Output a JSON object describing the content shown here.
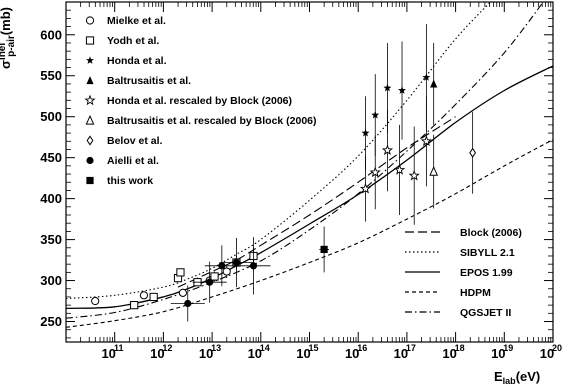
{
  "chart_data": {
    "type": "scatter",
    "x_scale": "log",
    "xlim_exponent": [
      10,
      20
    ],
    "ylim": [
      225,
      640
    ],
    "x_ticks": [
      {
        "base": "10",
        "exp": "11",
        "value": 11
      },
      {
        "base": "10",
        "exp": "12",
        "value": 12
      },
      {
        "base": "10",
        "exp": "13",
        "value": 13
      },
      {
        "base": "10",
        "exp": "14",
        "value": 14
      },
      {
        "base": "10",
        "exp": "15",
        "value": 15
      },
      {
        "base": "10",
        "exp": "16",
        "value": 16
      },
      {
        "base": "10",
        "exp": "17",
        "value": 17
      },
      {
        "base": "10",
        "exp": "18",
        "value": 18
      },
      {
        "base": "10",
        "exp": "19",
        "value": 19
      },
      {
        "base": "10",
        "exp": "20",
        "value": 20
      }
    ],
    "y_ticks": [
      "250",
      "300",
      "350",
      "400",
      "450",
      "500",
      "550",
      "600"
    ],
    "xlabel": {
      "main": "E",
      "sub": "lab",
      "unit": "(eV)"
    },
    "ylabel": {
      "main": "σ",
      "sup": "inel",
      "sub": "p-air",
      "unit": "(mb)"
    },
    "grid": false,
    "legend_points": [
      {
        "label": "Mielke et al.",
        "marker": "circle-open"
      },
      {
        "label": "Yodh et al.",
        "marker": "square-open"
      },
      {
        "label": "Honda et al.",
        "marker": "star-filled"
      },
      {
        "label": "Baltrusaitis et al.",
        "marker": "triangle-filled"
      },
      {
        "label": "Honda et al. rescaled by Block (2006)",
        "marker": "star-open"
      },
      {
        "label": "Baltrusaitis et al. rescaled by Block (2006)",
        "marker": "triangle-open"
      },
      {
        "label": "Belov et al.",
        "marker": "diamond-open"
      },
      {
        "label": "Aielli et al.",
        "marker": "circle-filled"
      },
      {
        "label": "this work",
        "marker": "square-filled"
      }
    ],
    "legend_lines": [
      {
        "label": "Block (2006)",
        "dash": "long-dash"
      },
      {
        "label": "SIBYLL 2.1",
        "dash": "dotted"
      },
      {
        "label": "EPOS 1.99",
        "dash": "solid"
      },
      {
        "label": "HDPM",
        "dash": "short-dash"
      },
      {
        "label": "QGSJET II",
        "dash": "dash-dot"
      }
    ],
    "lines": [
      {
        "name": "Block (2006)",
        "points": [
          [
            12.3,
            292
          ],
          [
            13,
            311
          ],
          [
            13.5,
            325
          ],
          [
            14,
            343
          ],
          [
            15,
            380
          ],
          [
            16,
            420
          ],
          [
            17,
            462
          ],
          [
            18,
            500
          ]
        ]
      },
      {
        "name": "SIBYLL 2.1",
        "points": [
          [
            10,
            278
          ],
          [
            11,
            282
          ],
          [
            12,
            292
          ],
          [
            12.5,
            302
          ],
          [
            13,
            315
          ],
          [
            13.5,
            332
          ],
          [
            14,
            350
          ],
          [
            15,
            398
          ],
          [
            16,
            452
          ],
          [
            17,
            520
          ],
          [
            18,
            595
          ],
          [
            18.8,
            645
          ]
        ]
      },
      {
        "name": "EPOS 1.99",
        "points": [
          [
            10,
            266
          ],
          [
            11,
            268
          ],
          [
            12,
            280
          ],
          [
            12.5,
            290
          ],
          [
            13,
            303
          ],
          [
            13.5,
            318
          ],
          [
            14,
            334
          ],
          [
            15,
            369
          ],
          [
            16,
            405
          ],
          [
            17,
            447
          ],
          [
            18,
            493
          ],
          [
            19,
            532
          ],
          [
            20,
            562
          ]
        ]
      },
      {
        "name": "HDPM",
        "points": [
          [
            10,
            243
          ],
          [
            11,
            251
          ],
          [
            12,
            262
          ],
          [
            13,
            280
          ],
          [
            14,
            300
          ],
          [
            15,
            322
          ],
          [
            16,
            346
          ],
          [
            17,
            375
          ],
          [
            18,
            406
          ],
          [
            19,
            440
          ],
          [
            20,
            472
          ]
        ]
      },
      {
        "name": "QGSJET II",
        "points": [
          [
            10,
            254
          ],
          [
            11,
            261
          ],
          [
            12,
            277
          ],
          [
            13,
            298
          ],
          [
            14,
            324
          ],
          [
            15,
            362
          ],
          [
            16,
            406
          ],
          [
            17,
            458
          ],
          [
            18,
            515
          ],
          [
            19,
            578
          ],
          [
            19.8,
            640
          ]
        ]
      }
    ],
    "series": [
      {
        "name": "Mielke et al.",
        "marker": "circle-open",
        "points": [
          {
            "x": 10.6,
            "y": 275,
            "yerr": 3
          },
          {
            "x": 11.6,
            "y": 282,
            "yerr": 3
          },
          {
            "x": 12.4,
            "y": 285,
            "yerr": 5
          },
          {
            "x": 12.95,
            "y": 300,
            "yerr": 6
          },
          {
            "x": 13.3,
            "y": 311,
            "yerr": 8
          }
        ]
      },
      {
        "name": "Yodh et al.",
        "marker": "square-open",
        "points": [
          {
            "x": 11.4,
            "y": 270,
            "yerr": 4
          },
          {
            "x": 11.8,
            "y": 280,
            "yerr": 4
          },
          {
            "x": 12.3,
            "y": 303,
            "yerr": 4
          },
          {
            "x": 12.35,
            "y": 310,
            "yerr": 4
          },
          {
            "x": 12.7,
            "y": 298,
            "yerr": 4
          },
          {
            "x": 13.05,
            "y": 305,
            "yerr": 6
          },
          {
            "x": 13.5,
            "y": 322,
            "yerr": 8
          },
          {
            "x": 13.85,
            "y": 330,
            "yerr": 10
          }
        ]
      },
      {
        "name": "Honda et al.",
        "marker": "star-filled",
        "points": [
          {
            "x": 16.15,
            "y": 480,
            "yerr": 45
          },
          {
            "x": 16.35,
            "y": 502,
            "yerr": 50
          },
          {
            "x": 16.6,
            "y": 535,
            "yerr": 55
          },
          {
            "x": 16.9,
            "y": 532,
            "yerr": 60
          },
          {
            "x": 17.4,
            "y": 548,
            "yerr": 65
          }
        ]
      },
      {
        "name": "Baltrusaitis et al.",
        "marker": "triangle-filled",
        "points": [
          {
            "x": 17.55,
            "y": 540,
            "yerr": 50
          }
        ]
      },
      {
        "name": "Honda et al. rescaled by Block (2006)",
        "marker": "star-open",
        "points": [
          {
            "x": 16.15,
            "y": 412,
            "yerr": 40
          },
          {
            "x": 16.35,
            "y": 432,
            "yerr": 45
          },
          {
            "x": 16.6,
            "y": 459,
            "yerr": 50
          },
          {
            "x": 16.85,
            "y": 435,
            "yerr": 55
          },
          {
            "x": 17.15,
            "y": 428,
            "yerr": 60
          },
          {
            "x": 17.4,
            "y": 470,
            "yerr": 55
          }
        ]
      },
      {
        "name": "Baltrusaitis et al. rescaled by Block (2006)",
        "marker": "triangle-open",
        "points": [
          {
            "x": 17.55,
            "y": 433,
            "yerr": 45
          }
        ]
      },
      {
        "name": "Belov et al.",
        "marker": "diamond-open",
        "points": [
          {
            "x": 18.35,
            "y": 456,
            "yerr": 50
          }
        ]
      },
      {
        "name": "Aielli et al.",
        "marker": "circle-filled",
        "points": [
          {
            "x": 12.5,
            "y": 272,
            "yerr": 22,
            "xerr": 0.35
          },
          {
            "x": 12.95,
            "y": 298,
            "yerr": 25,
            "xerr": 0.35
          },
          {
            "x": 13.2,
            "y": 318,
            "yerr": 25,
            "xerr": 0.35
          },
          {
            "x": 13.5,
            "y": 322,
            "yerr": 30,
            "xerr": 0.35
          },
          {
            "x": 13.85,
            "y": 318,
            "yerr": 35,
            "xerr": 0.35
          }
        ]
      },
      {
        "name": "this work",
        "marker": "square-filled",
        "points": [
          {
            "x": 15.3,
            "y": 338,
            "yerr": 28,
            "xerr": 0.1
          }
        ]
      }
    ]
  }
}
